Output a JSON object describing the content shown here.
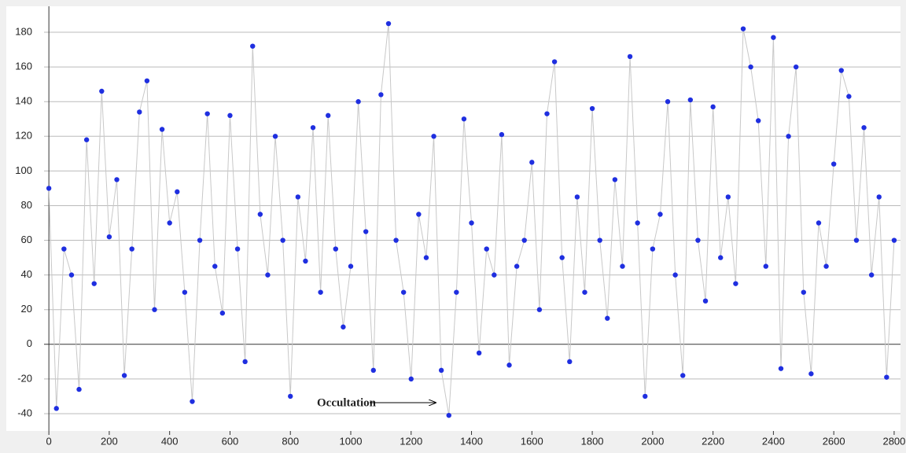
{
  "chart_data": {
    "type": "line",
    "markers": true,
    "annotation": "Occultation",
    "x": [
      0,
      25,
      50,
      75,
      100,
      125,
      150,
      175,
      200,
      225,
      250,
      275,
      300,
      325,
      350,
      375,
      400,
      425,
      450,
      475,
      500,
      525,
      550,
      575,
      600,
      625,
      650,
      675,
      700,
      725,
      750,
      775,
      800,
      825,
      850,
      875,
      900,
      925,
      950,
      975,
      1000,
      1025,
      1050,
      1075,
      1100,
      1125,
      1150,
      1175,
      1200,
      1225,
      1250,
      1275,
      1300,
      1325,
      1350,
      1375,
      1400,
      1425,
      1450,
      1475,
      1500,
      1525,
      1550,
      1575,
      1600,
      1625,
      1650,
      1675,
      1700,
      1725,
      1750,
      1775,
      1800,
      1825,
      1850,
      1875,
      1900,
      1925,
      1950,
      1975,
      2000,
      2025,
      2050,
      2075,
      2100,
      2125,
      2150,
      2175,
      2200,
      2225,
      2250,
      2275,
      2300,
      2325,
      2350,
      2375,
      2400,
      2425,
      2450,
      2475,
      2500,
      2525,
      2550,
      2575,
      2600,
      2625,
      2650,
      2675,
      2700,
      2725,
      2750,
      2775,
      2800
    ],
    "series": [
      {
        "color": "#1f2fe0",
        "line_color": "#c8c8c8",
        "values": [
          90,
          -37,
          55,
          40,
          -26,
          118,
          35,
          146,
          62,
          95,
          -18,
          55,
          134,
          152,
          20,
          124,
          70,
          88,
          30,
          -33,
          60,
          133,
          45,
          18,
          132,
          55,
          -10,
          172,
          75,
          40,
          120,
          60,
          -30,
          85,
          48,
          125,
          30,
          132,
          55,
          10,
          45,
          140,
          65,
          -15,
          144,
          185,
          60,
          30,
          -20,
          75,
          50,
          120,
          -15,
          -41,
          30,
          130,
          70,
          -5,
          55,
          40,
          121,
          -12,
          45,
          60,
          105,
          20,
          133,
          163,
          50,
          -10,
          85,
          30,
          136,
          60,
          15,
          95,
          45,
          166,
          70,
          -30,
          55,
          75,
          140,
          40,
          -18,
          141,
          60,
          25,
          137,
          50,
          85,
          35,
          182,
          160,
          129,
          45,
          177,
          -14,
          120,
          160,
          30,
          -17,
          70,
          45,
          104,
          158,
          143,
          60,
          125,
          40,
          85,
          -19,
          60
        ]
      }
    ],
    "xlim": [
      -16,
      2821
    ],
    "ylim": [
      -50,
      195
    ],
    "xticks": [
      0,
      200,
      400,
      600,
      800,
      1000,
      1200,
      1400,
      1600,
      1800,
      2000,
      2200,
      2400,
      2600,
      2800
    ],
    "yticks": [
      -40,
      -20,
      0,
      20,
      40,
      60,
      80,
      100,
      120,
      140,
      160,
      180
    ],
    "grid": true
  }
}
